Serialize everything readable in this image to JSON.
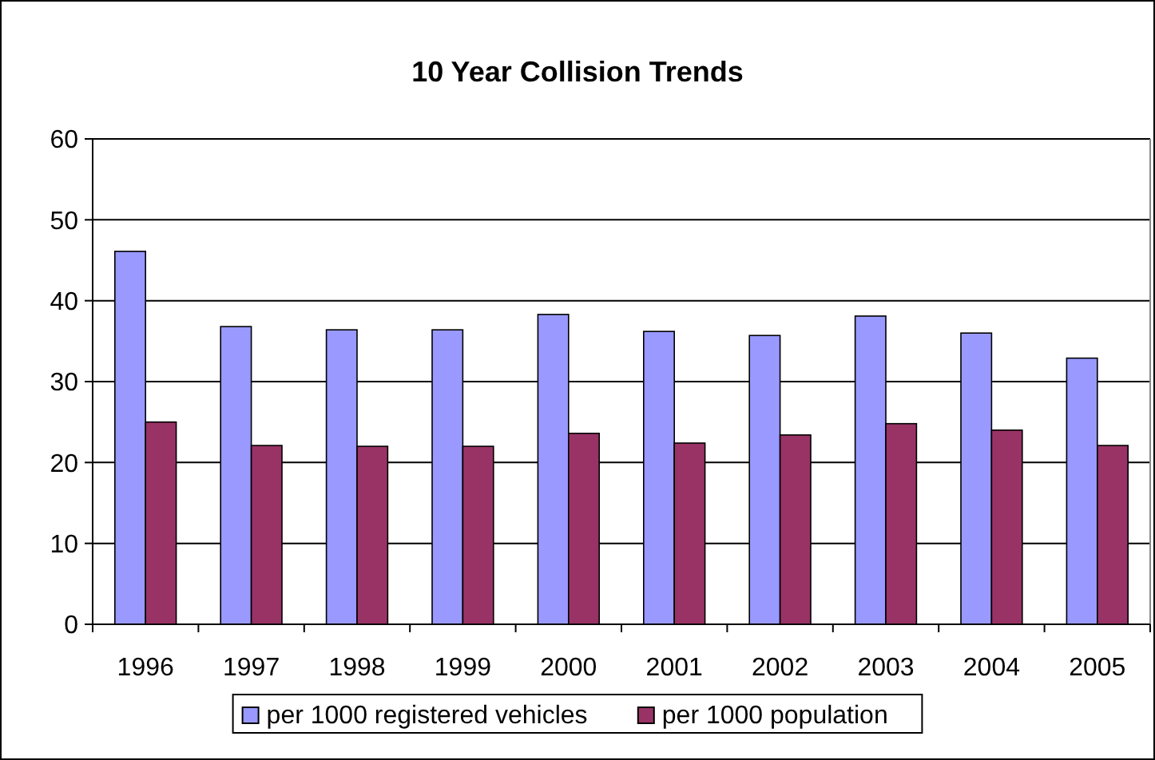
{
  "chart_data": {
    "type": "bar",
    "title": "10 Year Collision Trends",
    "categories": [
      "1996",
      "1997",
      "1998",
      "1999",
      "2000",
      "2001",
      "2002",
      "2003",
      "2004",
      "2005"
    ],
    "series": [
      {
        "name": "per 1000 registered vehicles",
        "color": "#9999ff",
        "values": [
          46.1,
          36.8,
          36.4,
          36.4,
          38.3,
          36.2,
          35.7,
          38.1,
          36.0,
          32.9
        ]
      },
      {
        "name": "per 1000 population",
        "color": "#993366",
        "values": [
          25.0,
          22.1,
          22.0,
          22.0,
          23.6,
          22.4,
          23.4,
          24.8,
          24.0,
          22.1
        ]
      }
    ],
    "ylim": [
      0,
      60
    ],
    "yticks": [
      0,
      10,
      20,
      30,
      40,
      50,
      60
    ],
    "grid": "y",
    "legend": "bottom"
  }
}
